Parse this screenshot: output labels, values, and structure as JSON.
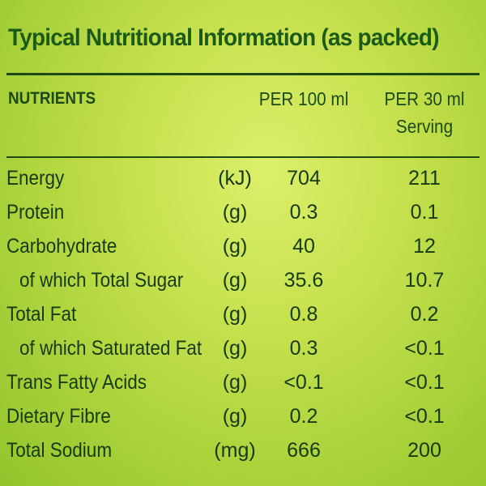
{
  "title": "Typical Nutritional Information (as packed)",
  "header": {
    "nutrients": "NUTRIENTS",
    "per100_line1": "PER 100 ml",
    "per30_line1": "PER 30 ml",
    "per30_line2": "Serving"
  },
  "rows": [
    {
      "name": "Energy",
      "unit": "(kJ)",
      "per100": "704",
      "per30": "211"
    },
    {
      "name": "Protein",
      "unit": "(g)",
      "per100": "0.3",
      "per30": "0.1"
    },
    {
      "name": "Carbohydrate",
      "unit": "(g)",
      "per100": "40",
      "per30": "12"
    },
    {
      "name": "of which Total Sugar",
      "unit": "(g)",
      "per100": "35.6",
      "per30": "10.7"
    },
    {
      "name": "Total Fat",
      "unit": "(g)",
      "per100": "0.8",
      "per30": "0.2"
    },
    {
      "name": "of which Saturated Fat",
      "unit": "(g)",
      "per100": "0.3",
      "per30": "<0.1"
    },
    {
      "name": "Trans Fatty Acids",
      "unit": "(g)",
      "per100": "<0.1",
      "per30": "<0.1"
    },
    {
      "name": "Dietary Fibre",
      "unit": "(g)",
      "per100": "0.2",
      "per30": "<0.1"
    },
    {
      "name": "Total Sodium",
      "unit": "(mg)",
      "per100": "666",
      "per30": "200"
    }
  ]
}
